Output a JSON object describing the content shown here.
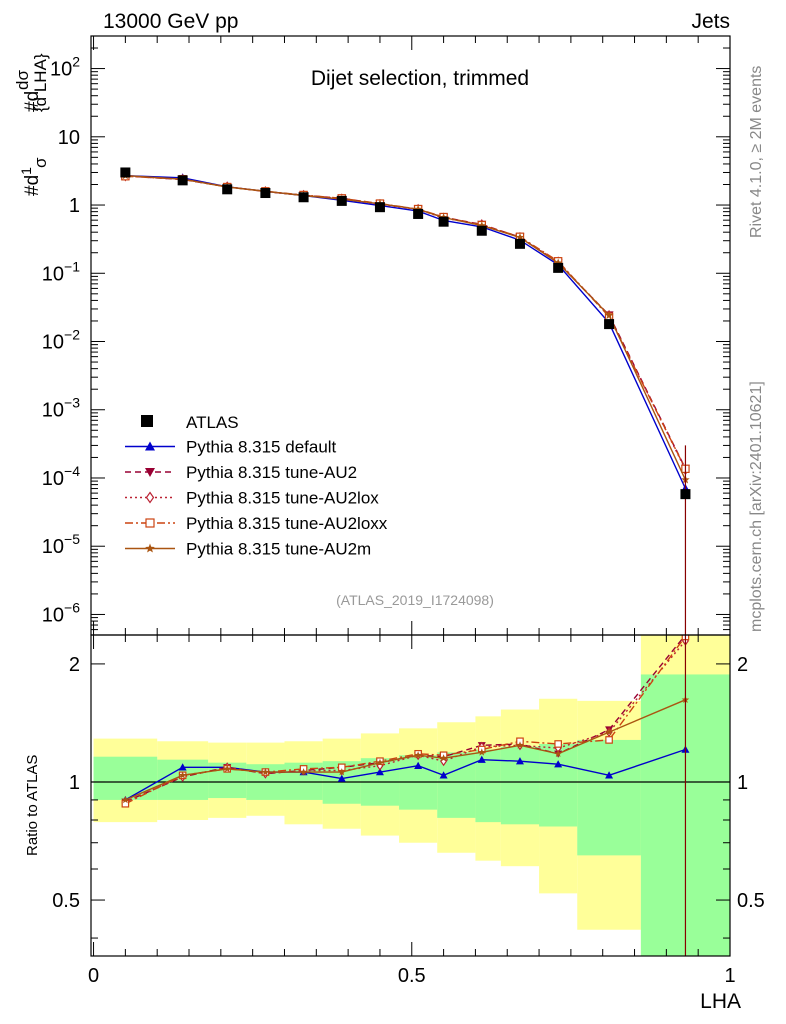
{
  "header": {
    "left": "13000 GeV pp",
    "right": "Jets"
  },
  "side": {
    "top": "Rivet 4.1.0, ≥ 2M events",
    "bottom": "mcplots.cern.ch [arXiv:2401.10621]"
  },
  "chart_data": {
    "type": "line",
    "title": "Dijet selection, trimmed",
    "analysis_id": "(ATLAS_2019_I1724098)",
    "xlabel": "LHA",
    "ylabel": "#dσ / σ d LHA",
    "ratio_ylabel": "Ratio to ATLAS",
    "xlim": [
      -0.004,
      1.0
    ],
    "ylim_main": [
      5e-07,
      300
    ],
    "ylim_ratio": [
      0.36,
      2.37
    ],
    "x_ticks": [
      {
        "v": 0,
        "label": "0"
      },
      {
        "v": 0.5,
        "label": "0.5"
      },
      {
        "v": 1,
        "label": "1"
      }
    ],
    "main_y_ticks": [
      {
        "exp": 2,
        "label": "10",
        "sup": "2"
      },
      {
        "exp": 1,
        "label": "10",
        "sup": ""
      },
      {
        "exp": 0,
        "label": "1",
        "sup": ""
      },
      {
        "exp": -1,
        "label": "10",
        "sup": "−1"
      },
      {
        "exp": -2,
        "label": "10",
        "sup": "−2"
      },
      {
        "exp": -3,
        "label": "10",
        "sup": "−3"
      },
      {
        "exp": -4,
        "label": "10",
        "sup": "−4"
      },
      {
        "exp": -5,
        "label": "10",
        "sup": "−5"
      },
      {
        "exp": -6,
        "label": "10",
        "sup": "−6"
      }
    ],
    "ratio_y_ticks": [
      {
        "v": 2,
        "label": "2"
      },
      {
        "v": 1,
        "label": "1"
      },
      {
        "v": 0.5,
        "label": "0.5"
      }
    ],
    "bin_edges": [
      0,
      0.1,
      0.18,
      0.24,
      0.3,
      0.36,
      0.42,
      0.48,
      0.54,
      0.6,
      0.64,
      0.7,
      0.76,
      0.86,
      1.0
    ],
    "x": [
      0.05,
      0.14,
      0.21,
      0.27,
      0.33,
      0.39,
      0.45,
      0.51,
      0.55,
      0.61,
      0.67,
      0.73,
      0.81,
      0.93
    ],
    "data_label": "ATLAS",
    "data": [
      3.0,
      2.3,
      1.7,
      1.5,
      1.3,
      1.15,
      0.93,
      0.74,
      0.57,
      0.42,
      0.27,
      0.12,
      0.018,
      5.8e-05
    ],
    "bands": {
      "inner": {
        "color": "#99ff99",
        "upper": [
          1.16,
          1.14,
          1.12,
          1.11,
          1.12,
          1.13,
          1.15,
          1.17,
          1.19,
          1.21,
          1.23,
          1.25,
          1.28,
          1.88
        ],
        "lower": [
          0.9,
          0.9,
          0.91,
          0.9,
          0.9,
          0.88,
          0.87,
          0.85,
          0.81,
          0.79,
          0.78,
          0.77,
          0.65,
          0.36
        ]
      },
      "outer": {
        "color": "#ffff99",
        "upper": [
          1.29,
          1.27,
          1.26,
          1.26,
          1.27,
          1.29,
          1.33,
          1.37,
          1.42,
          1.47,
          1.53,
          1.63,
          1.61,
          2.37
        ],
        "lower": [
          0.79,
          0.8,
          0.81,
          0.82,
          0.78,
          0.76,
          0.73,
          0.7,
          0.66,
          0.63,
          0.61,
          0.52,
          0.42,
          0.36
        ]
      }
    },
    "series": [
      {
        "name": "Pythia 8.315 default",
        "color": "#0000cc",
        "dash": "",
        "marker": "triangle-up",
        "ratio": [
          0.9,
          1.09,
          1.09,
          1.06,
          1.06,
          1.02,
          1.06,
          1.1,
          1.04,
          1.14,
          1.13,
          1.11,
          1.04,
          1.21
        ]
      },
      {
        "name": "Pythia 8.315 tune-AU2",
        "color": "#990033",
        "dash": "6,4",
        "marker": "triangle-down",
        "ratio": [
          0.89,
          1.03,
          1.09,
          1.05,
          1.07,
          1.09,
          1.12,
          1.17,
          1.16,
          1.24,
          1.25,
          1.18,
          1.36,
          2.38
        ]
      },
      {
        "name": "Pythia 8.315 tune-AU2lox",
        "color": "#bb2233",
        "dash": "2,3",
        "marker": "diamond",
        "ratio": [
          0.89,
          1.03,
          1.09,
          1.05,
          1.07,
          1.07,
          1.1,
          1.17,
          1.13,
          1.23,
          1.24,
          1.22,
          1.34,
          2.29
        ]
      },
      {
        "name": "Pythia 8.315 tune-AU2loxx",
        "color": "#cc4411",
        "dash": "8,3,2,3",
        "marker": "square",
        "ratio": [
          0.88,
          1.04,
          1.08,
          1.06,
          1.08,
          1.09,
          1.13,
          1.18,
          1.17,
          1.21,
          1.27,
          1.25,
          1.28,
          2.35
        ]
      },
      {
        "name": "Pythia 8.315 tune-AU2m",
        "color": "#aa5511",
        "dash": "",
        "marker": "star",
        "ratio": [
          0.9,
          1.04,
          1.08,
          1.06,
          1.06,
          1.06,
          1.12,
          1.17,
          1.15,
          1.19,
          1.24,
          1.18,
          1.34,
          1.62
        ]
      }
    ]
  }
}
